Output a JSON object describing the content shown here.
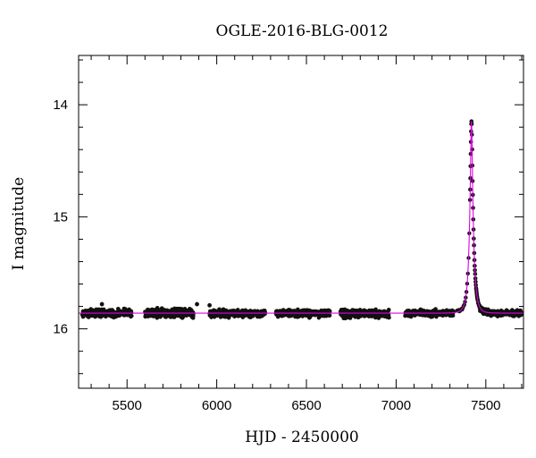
{
  "chart_data": {
    "type": "scatter",
    "title": "OGLE-2016-BLG-0012",
    "xlabel": "HJD - 2450000",
    "ylabel": "I magnitude",
    "xlim": [
      5230,
      7710
    ],
    "ylim": [
      16.53,
      13.56
    ],
    "y_inverted": true,
    "grid": false,
    "legend": "none",
    "x_ticks": [
      5500,
      6000,
      6500,
      7000,
      7500
    ],
    "y_ticks": [
      14,
      15,
      16
    ],
    "x_minor_step": 100,
    "y_minor_step": 0.2,
    "marker_color": "#111111",
    "model_color": "#e000e0",
    "series": [
      {
        "kind": "points",
        "seasons": [
          {
            "x": [
              5250,
              5525
            ],
            "baseline": 15.86,
            "scatter": 0.04
          },
          {
            "x": [
              5600,
              5870
            ],
            "baseline": 15.86,
            "scatter": 0.045
          },
          {
            "x": [
              5960,
              6270
            ],
            "baseline": 15.86,
            "scatter": 0.04
          },
          {
            "x": [
              6330,
              6630
            ],
            "baseline": 15.86,
            "scatter": 0.04
          },
          {
            "x": [
              6690,
              6960
            ],
            "baseline": 15.865,
            "scatter": 0.045
          },
          {
            "x": [
              7050,
              7320
            ],
            "baseline": 15.86,
            "scatter": 0.035
          }
        ],
        "outliers": [
          {
            "x": 5360,
            "y": 15.78
          },
          {
            "x": 5960,
            "y": 15.79
          },
          {
            "x": 5890,
            "y": 15.78
          }
        ],
        "event": {
          "t0": 7420,
          "peak_mag": 14.02,
          "baseline": 15.86,
          "decline_end": 7700
        }
      },
      {
        "kind": "model",
        "t0": 7420,
        "u0": 0.21,
        "tE": 22,
        "baseline": 15.86,
        "x_range": [
          5230,
          7710
        ]
      }
    ]
  }
}
